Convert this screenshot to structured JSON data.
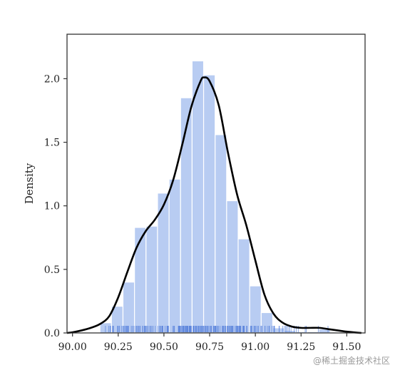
{
  "chart_data": {
    "type": "histogram",
    "title": "",
    "xlabel": "",
    "ylabel": "Density",
    "xlim": [
      89.97,
      91.6
    ],
    "ylim": [
      0,
      2.35
    ],
    "grid": false,
    "legend": "none",
    "x_ticks": [
      90.0,
      90.25,
      90.5,
      90.75,
      91.0,
      91.25,
      91.5
    ],
    "x_tick_labels": [
      "90.00",
      "90.25",
      "90.50",
      "90.75",
      "91.00",
      "91.25",
      "91.50"
    ],
    "y_ticks": [
      0.0,
      0.5,
      1.0,
      1.5,
      2.0
    ],
    "y_tick_labels": [
      "0.0",
      "0.5",
      "1.0",
      "1.5",
      "2.0"
    ],
    "bins": [
      {
        "x0": 90.15,
        "x1": 90.213,
        "density": 0.08
      },
      {
        "x0": 90.213,
        "x1": 90.276,
        "density": 0.21
      },
      {
        "x0": 90.276,
        "x1": 90.339,
        "density": 0.4
      },
      {
        "x0": 90.339,
        "x1": 90.402,
        "density": 0.83
      },
      {
        "x0": 90.402,
        "x1": 90.465,
        "density": 0.84
      },
      {
        "x0": 90.465,
        "x1": 90.528,
        "density": 1.1
      },
      {
        "x0": 90.528,
        "x1": 90.591,
        "density": 1.21
      },
      {
        "x0": 90.591,
        "x1": 90.654,
        "density": 1.85
      },
      {
        "x0": 90.654,
        "x1": 90.717,
        "density": 2.14
      },
      {
        "x0": 90.717,
        "x1": 90.78,
        "density": 2.03
      },
      {
        "x0": 90.78,
        "x1": 90.843,
        "density": 1.56
      },
      {
        "x0": 90.843,
        "x1": 90.906,
        "density": 1.04
      },
      {
        "x0": 90.906,
        "x1": 90.969,
        "density": 0.74
      },
      {
        "x0": 90.969,
        "x1": 91.032,
        "density": 0.37
      },
      {
        "x0": 91.032,
        "x1": 91.095,
        "density": 0.16
      },
      {
        "x0": 91.095,
        "x1": 91.158,
        "density": 0.04
      },
      {
        "x0": 91.158,
        "x1": 91.221,
        "density": 0.02
      },
      {
        "x0": 91.221,
        "x1": 91.284,
        "density": 0.01
      },
      {
        "x0": 91.284,
        "x1": 91.347,
        "density": 0.01
      },
      {
        "x0": 91.347,
        "x1": 91.41,
        "density": 0.03
      }
    ],
    "kde": {
      "x": [
        89.97,
        90.0,
        90.05,
        90.1,
        90.15,
        90.2,
        90.25,
        90.3,
        90.35,
        90.4,
        90.45,
        90.5,
        90.55,
        90.6,
        90.65,
        90.7,
        90.72,
        90.75,
        90.8,
        90.85,
        90.9,
        90.95,
        91.0,
        91.05,
        91.1,
        91.15,
        91.2,
        91.25,
        91.3,
        91.35,
        91.4,
        91.45,
        91.5,
        91.55,
        91.58
      ],
      "y": [
        0.0,
        0.005,
        0.02,
        0.04,
        0.07,
        0.13,
        0.28,
        0.48,
        0.67,
        0.8,
        0.89,
        1.01,
        1.2,
        1.48,
        1.78,
        1.98,
        2.01,
        1.98,
        1.79,
        1.42,
        1.09,
        0.85,
        0.57,
        0.3,
        0.15,
        0.08,
        0.05,
        0.04,
        0.04,
        0.04,
        0.03,
        0.02,
        0.01,
        0.003,
        0.0
      ]
    },
    "rug": {
      "x_range": [
        90.15,
        91.42
      ],
      "peak": 90.72
    },
    "colors": {
      "bars": "#b8ccf2",
      "bar_edge": "#ffffff",
      "kde": "#000000",
      "rug": "#5b84dc",
      "axis": "#333333"
    }
  },
  "watermark": "@稀土掘金技术社区"
}
